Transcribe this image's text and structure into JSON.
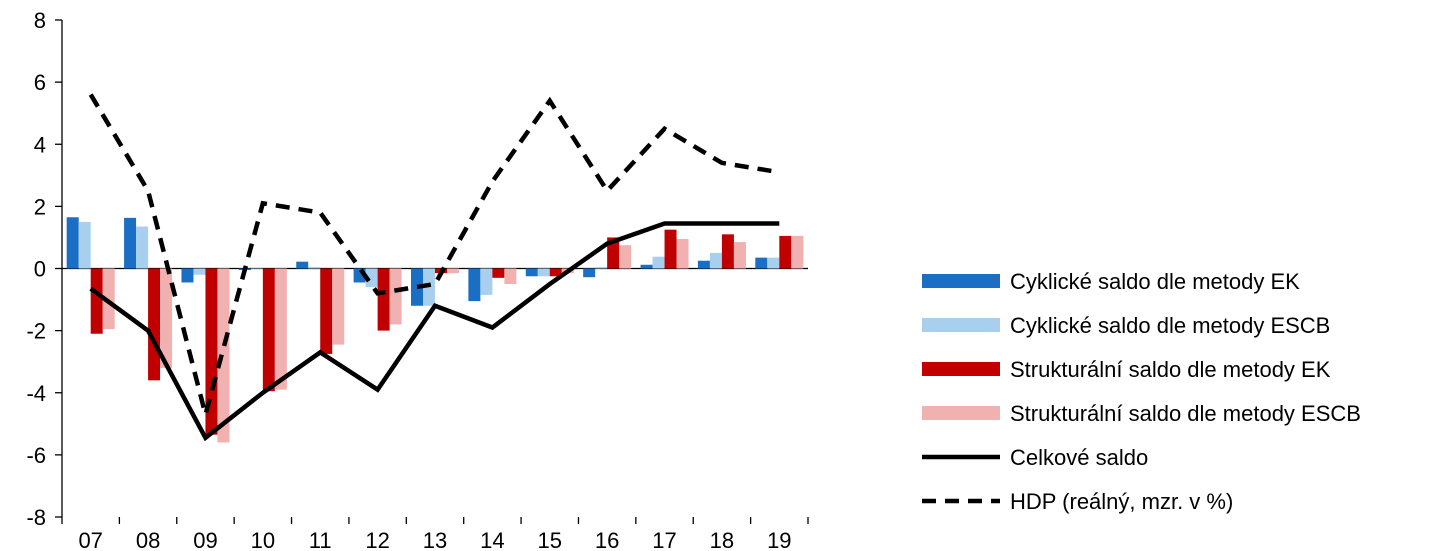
{
  "chart_data": {
    "type": "bar",
    "categories": [
      "07",
      "08",
      "09",
      "10",
      "11",
      "12",
      "13",
      "14",
      "15",
      "16",
      "17",
      "18",
      "19"
    ],
    "ylim": [
      -8,
      8
    ],
    "yticks": [
      8,
      6,
      4,
      2,
      0,
      -2,
      -4,
      -6,
      -8
    ],
    "grid": false,
    "legend_position": "right",
    "series": [
      {
        "name": "Cyklické saldo dle metody EK",
        "kind": "bar",
        "color": "#1a6fc4",
        "values": [
          1.65,
          1.63,
          -0.45,
          -0.05,
          0.22,
          -0.45,
          -1.2,
          -1.05,
          -0.25,
          -0.28,
          0.12,
          0.25,
          0.35
        ]
      },
      {
        "name": "Cyklické saldo dle metody ESCB",
        "kind": "bar",
        "color": "#a9cfee",
        "values": [
          1.5,
          1.35,
          -0.2,
          0.0,
          0.05,
          -0.6,
          -1.2,
          -0.85,
          -0.25,
          0.05,
          0.38,
          0.5,
          0.35
        ]
      },
      {
        "name": "Strukturální saldo dle metody EK",
        "kind": "bar",
        "color": "#c00000",
        "values": [
          -2.1,
          -3.6,
          -5.35,
          -3.95,
          -2.75,
          -2.0,
          -0.15,
          -0.3,
          -0.25,
          1.0,
          1.25,
          1.1,
          1.05
        ]
      },
      {
        "name": "Strukturální saldo dle metody ESCB",
        "kind": "bar",
        "color": "#f1b1b1",
        "values": [
          -1.95,
          -3.2,
          -5.6,
          -3.9,
          -2.45,
          -1.8,
          -0.15,
          -0.5,
          -0.15,
          0.75,
          0.95,
          0.85,
          1.05
        ]
      },
      {
        "name": "Celkové saldo",
        "kind": "line",
        "color": "#000000",
        "dash": "solid",
        "values": [
          -0.65,
          -2.0,
          -5.45,
          -4.0,
          -2.7,
          -3.9,
          -1.2,
          -1.9,
          -0.5,
          0.8,
          1.45,
          1.45,
          1.45
        ]
      },
      {
        "name": "HDP (reálný, mzr. v %)",
        "kind": "line",
        "color": "#000000",
        "dash": "dashed",
        "values": [
          5.6,
          2.5,
          -4.7,
          2.1,
          1.8,
          -0.8,
          -0.5,
          2.8,
          5.4,
          2.5,
          4.5,
          3.4,
          3.1
        ]
      }
    ]
  }
}
